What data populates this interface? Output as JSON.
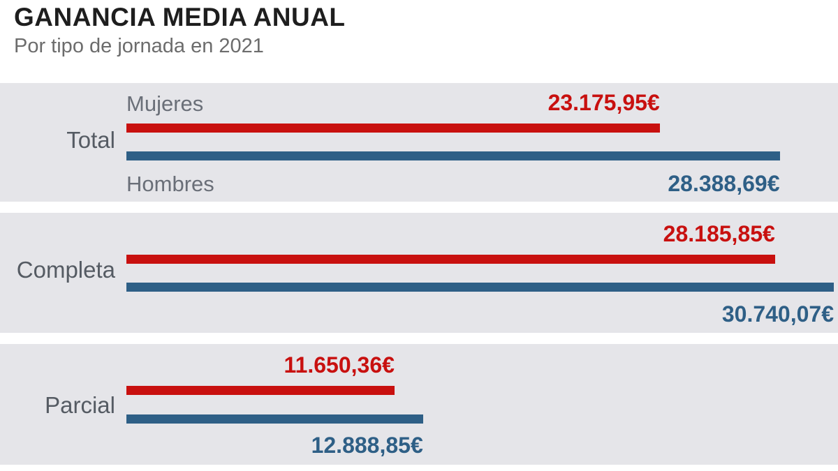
{
  "chart_data": {
    "type": "bar",
    "orientation": "horizontal",
    "title": "GANANCIA MEDIA ANUAL",
    "subtitle": "Por tipo de jornada en 2021",
    "categories": [
      "Total",
      "Completa",
      "Parcial"
    ],
    "series": [
      {
        "name": "Mujeres",
        "color": "#c8100f",
        "values": [
          23175.95,
          28185.85,
          11650.36
        ],
        "labels": [
          "23.175,95€",
          "28.185,85€",
          "11.650,36€"
        ]
      },
      {
        "name": "Hombres",
        "color": "#2e5f86",
        "values": [
          28388.69,
          30740.07,
          12888.85
        ],
        "labels": [
          "28.388,69€",
          "30.740,07€",
          "12.888,85€"
        ]
      }
    ],
    "grid": false,
    "legend": "inline-first-category"
  }
}
